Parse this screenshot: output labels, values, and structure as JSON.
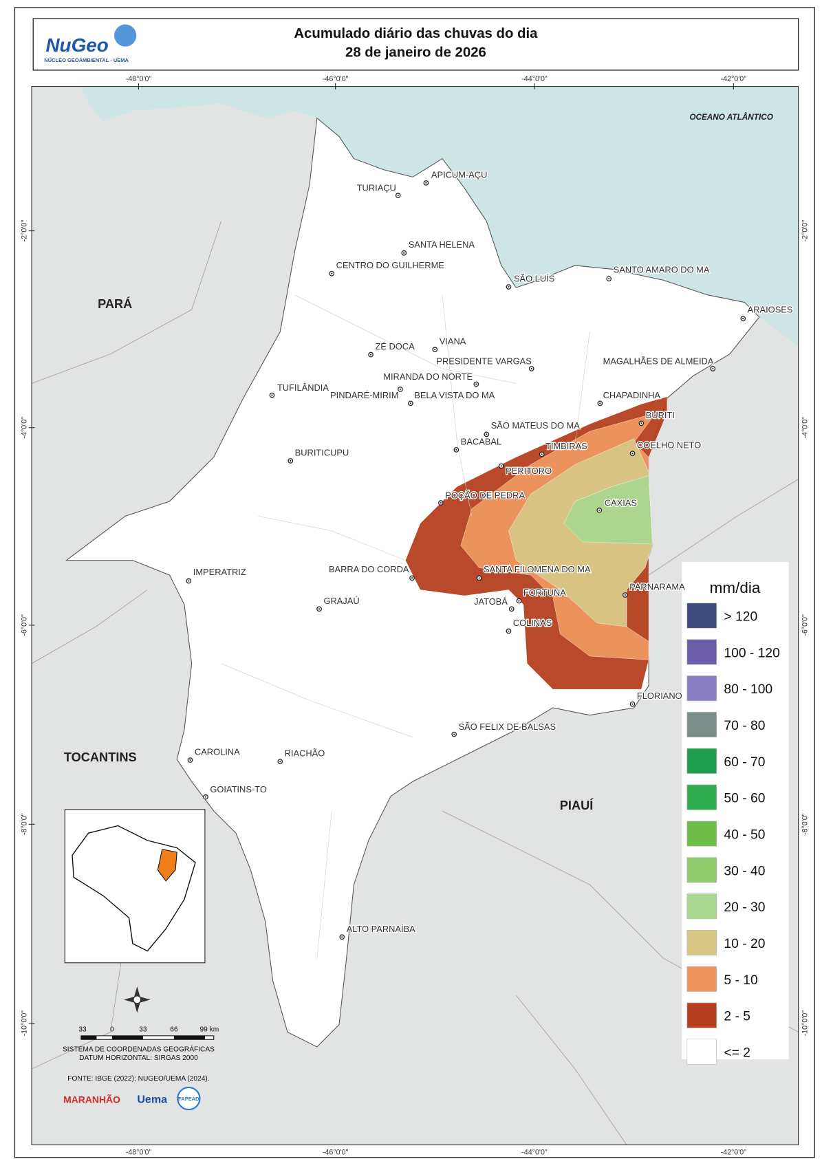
{
  "header": {
    "logo": "NuGeo",
    "logo_sub": "NÚCLEO GEOAMBIENTAL - UEMA",
    "title": [
      "Acumulado diário das chuvas do dia",
      "28 de janeiro de 2026"
    ]
  },
  "graticule": {
    "longitudes": [
      "-48°0'0\"",
      "-46°0'0\"",
      "-44°0'0\"",
      "-42°0'0\""
    ],
    "latitudes": [
      "-2°0'0\"",
      "-4°0'0\"",
      "-6°0'0\"",
      "-8°0'0\"",
      "-10°0'0\""
    ]
  },
  "regions": [
    "PARÁ",
    "TOCANTINS",
    "PIAUÍ",
    "OCEANO ATLÂNTICO"
  ],
  "cities": [
    "APICUM-AÇU",
    "TURIAÇU",
    "SANTA HELENA",
    "CENTRO DO GUILHERME",
    "SÃO LUÍS",
    "SANTO AMARO DO MA",
    "ARAIOSES",
    "ZÉ DOCA",
    "VIANA",
    "PRESIDENTE VARGAS",
    "MAGALHÃES DE ALMEIDA",
    "MIRANDA DO NORTE",
    "PINDARÉ-MIRIM",
    "BELA VISTA DO MA",
    "TUFILÂNDIA",
    "CHAPADINHA",
    "BURITI",
    "SÃO MATEUS DO MA",
    "BACABAL",
    "TIMBIRAS",
    "COELHO NETO",
    "BURITICUPU",
    "PERITORO",
    "POÇÃO DE PEDRA",
    "CAXIAS",
    "IMPERATRIZ",
    "BARRA DO CORDA",
    "SANTA FILOMENA DO MA",
    "PARNARAMA",
    "FORTUNA",
    "JATOBÁ",
    "GRAJAÚ",
    "COLINAS",
    "FLORIANO",
    "SÃO FELIX DE BALSAS",
    "CAROLINA",
    "RIACHÃO",
    "GOIATINS-TO",
    "ALTO PARNAÍBA"
  ],
  "legend": {
    "title": "mm/dia",
    "classes": [
      {
        "label": "> 120",
        "color": "#3d4b7d"
      },
      {
        "label": "100 - 120",
        "color": "#6b5da8"
      },
      {
        "label": "80 - 100",
        "color": "#8a7fc2"
      },
      {
        "label": "70 - 80",
        "color": "#7a8f8a"
      },
      {
        "label": "60 - 70",
        "color": "#1f9e50"
      },
      {
        "label": "50 - 60",
        "color": "#2eac4f"
      },
      {
        "label": "40 - 50",
        "color": "#6fbe4a"
      },
      {
        "label": "30 - 40",
        "color": "#8fcb6c"
      },
      {
        "label": "20 - 30",
        "color": "#aad78f"
      },
      {
        "label": "10 - 20",
        "color": "#d7c684"
      },
      {
        "label": "5 - 10",
        "color": "#ef9660"
      },
      {
        "label": "2 - 5",
        "color": "#b5401f"
      },
      {
        "label": "<= 2",
        "color": "#ffffff"
      }
    ]
  },
  "scale_bar": [
    "33",
    "0",
    "33",
    "66",
    "99 km"
  ],
  "footer": {
    "crs": "SISTEMA DE COORDENADAS GEOGRÁFICAS",
    "datum": "DATUM HORIZONTAL: SIRGAS 2000",
    "source": "FONTE: IBGE (2022); NUGEO/UEMA (2024).",
    "logos": [
      "MARANHÃO",
      "Uema",
      "FAPEAD"
    ]
  }
}
